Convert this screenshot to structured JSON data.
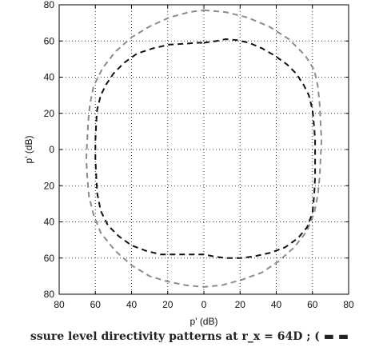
{
  "chart_data": {
    "type": "line",
    "plot": "polar-directivity",
    "xlabel": "p' (dB)",
    "ylabel": "p' (dB)",
    "xlim": [
      -80,
      80
    ],
    "ylim": [
      -80,
      80
    ],
    "x_tick_labels": [
      "80",
      "60",
      "40",
      "20",
      "0",
      "20",
      "40",
      "60",
      "80"
    ],
    "y_tick_labels": [
      "80",
      "60",
      "40",
      "20",
      "0",
      "20",
      "40",
      "60",
      "80"
    ],
    "grid": true,
    "series": [
      {
        "color": "#8c8c8c",
        "style": "dashed",
        "points": [
          [
            0,
            77
          ],
          [
            12,
            76
          ],
          [
            24,
            73
          ],
          [
            36,
            68
          ],
          [
            47,
            61
          ],
          [
            56,
            52
          ],
          [
            61,
            44
          ],
          [
            63,
            35
          ],
          [
            64,
            25
          ],
          [
            64.5,
            15
          ],
          [
            65,
            5
          ],
          [
            64.5,
            -5
          ],
          [
            64,
            -15
          ],
          [
            63,
            -25
          ],
          [
            61,
            -35
          ],
          [
            57,
            -45
          ],
          [
            50,
            -54
          ],
          [
            41,
            -62
          ],
          [
            32,
            -68
          ],
          [
            21,
            -72
          ],
          [
            10,
            -75
          ],
          [
            0,
            -76
          ],
          [
            -10,
            -75
          ],
          [
            -20,
            -73
          ],
          [
            -30,
            -70
          ],
          [
            -40,
            -64
          ],
          [
            -49,
            -56
          ],
          [
            -57,
            -46
          ],
          [
            -61,
            -36
          ],
          [
            -63.5,
            -26
          ],
          [
            -64.5,
            -15
          ],
          [
            -65,
            -5
          ],
          [
            -64.5,
            5
          ],
          [
            -64,
            15
          ],
          [
            -63,
            25
          ],
          [
            -61,
            35
          ],
          [
            -56,
            45
          ],
          [
            -49,
            54
          ],
          [
            -40,
            62
          ],
          [
            -30,
            68
          ],
          [
            -19,
            73
          ],
          [
            -8,
            76
          ],
          [
            0,
            77
          ]
        ]
      },
      {
        "color": "#111111",
        "style": "dashed",
        "points": [
          [
            0,
            59
          ],
          [
            7,
            60
          ],
          [
            12,
            61
          ],
          [
            18,
            60.5
          ],
          [
            25,
            59
          ],
          [
            32,
            56
          ],
          [
            39,
            52
          ],
          [
            46,
            47
          ],
          [
            51,
            42
          ],
          [
            55,
            36
          ],
          [
            58,
            30
          ],
          [
            60,
            22
          ],
          [
            61,
            12
          ],
          [
            61.5,
            5
          ],
          [
            61.5,
            -5
          ],
          [
            61.5,
            -15
          ],
          [
            61,
            -25
          ],
          [
            60,
            -35
          ],
          [
            57,
            -43
          ],
          [
            52,
            -49
          ],
          [
            45,
            -54
          ],
          [
            37,
            -57
          ],
          [
            28,
            -59
          ],
          [
            20,
            -60
          ],
          [
            12,
            -60
          ],
          [
            5,
            -59
          ],
          [
            0,
            -58
          ],
          [
            -8,
            -58
          ],
          [
            -16,
            -58
          ],
          [
            -24,
            -58
          ],
          [
            -32,
            -56
          ],
          [
            -40,
            -53
          ],
          [
            -47,
            -48
          ],
          [
            -53,
            -42
          ],
          [
            -57,
            -34
          ],
          [
            -59,
            -24
          ],
          [
            -59.5,
            -15
          ],
          [
            -60,
            -5
          ],
          [
            -60,
            5
          ],
          [
            -59.5,
            15
          ],
          [
            -59,
            22
          ],
          [
            -57,
            30
          ],
          [
            -54,
            36
          ],
          [
            -50,
            42
          ],
          [
            -44,
            48
          ],
          [
            -37,
            53
          ],
          [
            -28,
            56
          ],
          [
            -19,
            58
          ],
          [
            -10,
            58.5
          ],
          [
            -4,
            59
          ],
          [
            0,
            59
          ]
        ]
      }
    ]
  },
  "caption": "ssure level directivity patterns at r_x = 64D ; ( ▬ ▬"
}
